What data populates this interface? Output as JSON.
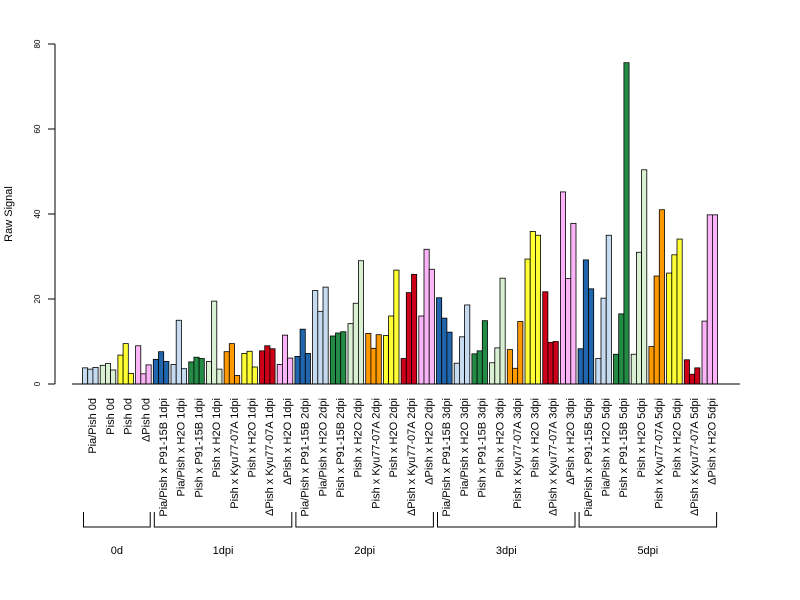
{
  "chart_data": {
    "type": "bar",
    "title": "",
    "xlabel": "",
    "ylabel": "Raw Signal",
    "ylim": [
      0,
      80
    ],
    "yticks": [
      0,
      20,
      40,
      60,
      80
    ],
    "grid": false,
    "bar_outline_color": "#000000",
    "categories": [
      {
        "label": "Pia/Pish 0d",
        "group": "0d",
        "fill": "#c6dbef",
        "values": [
          3.8,
          3.5,
          3.9
        ]
      },
      {
        "label": "Pish 0d",
        "group": "0d",
        "fill": "#d9f0d3",
        "values": [
          4.4,
          4.8,
          3.3
        ]
      },
      {
        "label": "Pish 0d",
        "group": "0d",
        "fill": "#ffff33",
        "values": [
          6.8,
          9.5,
          2.5
        ]
      },
      {
        "label": "ΔPish 0d",
        "group": "0d",
        "fill": "#fbb4f8",
        "values": [
          9.0,
          2.4,
          4.5
        ]
      },
      {
        "label": "Pia/Pish x P91-15B 1dpi",
        "group": "1dpi",
        "fill": "#2166ac",
        "values": [
          5.8,
          7.6,
          5.3
        ]
      },
      {
        "label": "Pia/Pish x H2O 1dpi",
        "group": "1dpi",
        "fill": "#c6dbef",
        "values": [
          4.6,
          15.0,
          3.6
        ]
      },
      {
        "label": "Pish x P91-15B 1dpi",
        "group": "1dpi",
        "fill": "#238b45",
        "values": [
          5.2,
          6.3,
          6.0
        ]
      },
      {
        "label": "Pish x H2O 1dpi",
        "group": "1dpi",
        "fill": "#d9f0d3",
        "values": [
          5.3,
          19.5,
          3.5
        ]
      },
      {
        "label": "Pish x Kyu77-07A 1dpi",
        "group": "1dpi",
        "fill": "#ff9900",
        "values": [
          7.6,
          9.5,
          2.0
        ]
      },
      {
        "label": "Pish x H2O 1dpi",
        "group": "1dpi",
        "fill": "#ffff33",
        "values": [
          7.2,
          7.7,
          4.0
        ]
      },
      {
        "label": "ΔPish x Kyu77-07A 1dpi",
        "group": "1dpi",
        "fill": "#cc0018",
        "values": [
          7.8,
          9.0,
          8.3
        ]
      },
      {
        "label": "ΔPish x H2O 1dpi",
        "group": "1dpi",
        "fill": "#fbb4f8",
        "values": [
          4.6,
          11.5,
          6.1
        ]
      },
      {
        "label": "Pia/Pish x P91-15B 2dpi",
        "group": "2dpi",
        "fill": "#2166ac",
        "values": [
          6.5,
          12.9,
          7.2
        ]
      },
      {
        "label": "Pia/Pish x H2O 2dpi",
        "group": "2dpi",
        "fill": "#c6dbef",
        "values": [
          22.0,
          17.1,
          22.8
        ]
      },
      {
        "label": "Pish x P91-15B 2dpi",
        "group": "2dpi",
        "fill": "#238b45",
        "values": [
          11.3,
          12.0,
          12.3
        ]
      },
      {
        "label": "Pish x H2O 2dpi",
        "group": "2dpi",
        "fill": "#d9f0d3",
        "values": [
          14.2,
          19.0,
          29.0
        ]
      },
      {
        "label": "Pish x Kyu77-07A 2dpi",
        "group": "2dpi",
        "fill": "#ff9900",
        "values": [
          11.9,
          8.4,
          11.6
        ]
      },
      {
        "label": "Pish x H2O 2dpi",
        "group": "2dpi",
        "fill": "#ffff33",
        "values": [
          11.4,
          16.0,
          26.8
        ]
      },
      {
        "label": "ΔPish x Kyu77-07A 2dpi",
        "group": "2dpi",
        "fill": "#cc0018",
        "values": [
          6.0,
          21.5,
          25.8
        ]
      },
      {
        "label": "ΔPish x H2O 2dpi",
        "group": "2dpi",
        "fill": "#fbb4f8",
        "values": [
          16.0,
          31.7,
          27.0
        ]
      },
      {
        "label": "Pia/Pish x P91-15B 3dpi",
        "group": "3dpi",
        "fill": "#2166ac",
        "values": [
          20.3,
          15.5,
          12.2
        ]
      },
      {
        "label": "Pia/Pish x H2O 3dpi",
        "group": "3dpi",
        "fill": "#c6dbef",
        "values": [
          4.9,
          11.1,
          18.6
        ]
      },
      {
        "label": "Pish x P91-15B 3dpi",
        "group": "3dpi",
        "fill": "#238b45",
        "values": [
          7.1,
          7.8,
          14.9
        ]
      },
      {
        "label": "Pish x H2O 3dpi",
        "group": "3dpi",
        "fill": "#d9f0d3",
        "values": [
          5.0,
          8.5,
          24.9
        ]
      },
      {
        "label": "Pish x Kyu77-07A 3dpi",
        "group": "3dpi",
        "fill": "#ff9900",
        "values": [
          8.1,
          3.7,
          14.7
        ]
      },
      {
        "label": "Pish x H2O 3dpi",
        "group": "3dpi",
        "fill": "#ffff33",
        "values": [
          29.4,
          35.9,
          35.0
        ]
      },
      {
        "label": "ΔPish x Kyu77-07A 3dpi",
        "group": "3dpi",
        "fill": "#cc0018",
        "values": [
          21.7,
          9.8,
          10.0
        ]
      },
      {
        "label": "ΔPish x H2O 3dpi",
        "group": "3dpi",
        "fill": "#fbb4f8",
        "values": [
          45.2,
          24.8,
          37.8
        ]
      },
      {
        "label": "Pia/Pish x P91-15B 5dpi",
        "group": "5dpi",
        "fill": "#2166ac",
        "values": [
          8.3,
          29.2,
          22.4
        ]
      },
      {
        "label": "Pia/Pish x H2O 5dpi",
        "group": "5dpi",
        "fill": "#c6dbef",
        "values": [
          6.0,
          20.2,
          35.0
        ]
      },
      {
        "label": "Pish x P91-15B 5dpi",
        "group": "5dpi",
        "fill": "#238b45",
        "values": [
          7.0,
          16.5,
          75.6
        ]
      },
      {
        "label": "Pish x H2O 5dpi",
        "group": "5dpi",
        "fill": "#d9f0d3",
        "values": [
          7.0,
          31.0,
          50.4
        ]
      },
      {
        "label": "Pish x Kyu77-07A 5dpi",
        "group": "5dpi",
        "fill": "#ff9900",
        "values": [
          8.8,
          25.4,
          41.0
        ]
      },
      {
        "label": "Pish x H2O 5dpi",
        "group": "5dpi",
        "fill": "#ffff33",
        "values": [
          26.1,
          30.4,
          34.1
        ]
      },
      {
        "label": "ΔPish x Kyu77-07A 5dpi",
        "group": "5dpi",
        "fill": "#cc0018",
        "values": [
          5.7,
          2.3,
          3.8
        ]
      },
      {
        "label": "ΔPish x H2O 5dpi",
        "group": "5dpi",
        "fill": "#fbb4f8",
        "values": [
          14.8,
          39.8,
          39.8
        ]
      }
    ],
    "groups": [
      {
        "label": "0d",
        "first": 0,
        "last": 3
      },
      {
        "label": "1dpi",
        "first": 4,
        "last": 11
      },
      {
        "label": "2dpi",
        "first": 12,
        "last": 19
      },
      {
        "label": "3dpi",
        "first": 20,
        "last": 27
      },
      {
        "label": "5dpi",
        "first": 28,
        "last": 35
      }
    ]
  }
}
